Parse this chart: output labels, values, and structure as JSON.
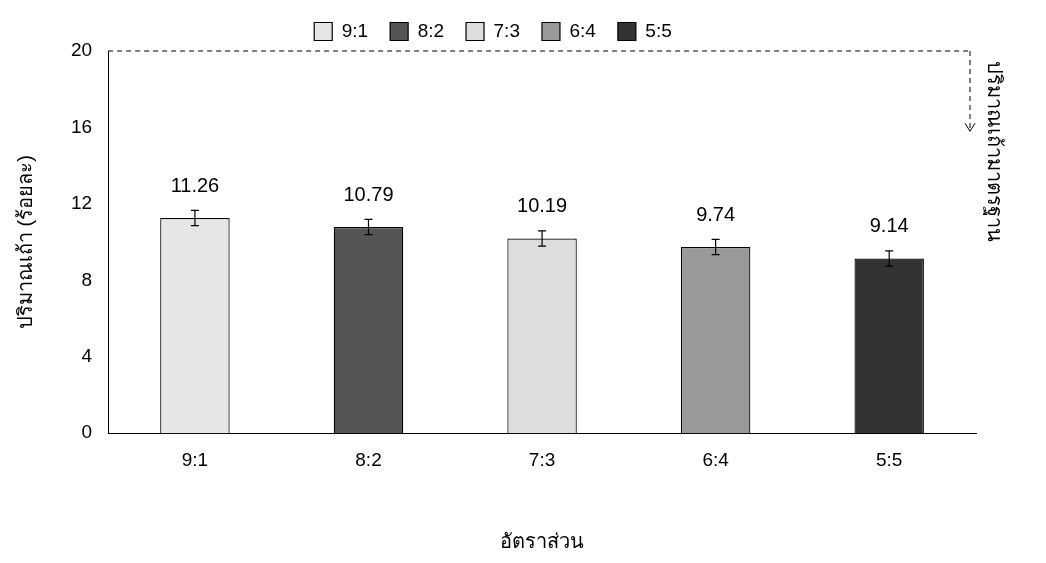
{
  "chart_data": {
    "type": "bar",
    "xlabel": "อัตราส่วน",
    "ylabel": "ปริมาณเถ้า (ร้อยละ)",
    "categories": [
      "9:1",
      "8:2",
      "7:3",
      "6:4",
      "5:5"
    ],
    "series": [
      {
        "name": "9:1",
        "color": "#e6e6e6",
        "values": [
          11.26,
          null,
          null,
          null,
          null
        ],
        "errors": [
          0.4,
          null,
          null,
          null,
          null
        ]
      },
      {
        "name": "8:2",
        "color": "#555555",
        "values": [
          null,
          10.79,
          null,
          null,
          null
        ],
        "errors": [
          null,
          0.4,
          null,
          null,
          null
        ]
      },
      {
        "name": "7:3",
        "color": "#dddddd",
        "values": [
          null,
          null,
          10.19,
          null,
          null
        ],
        "errors": [
          null,
          null,
          0.4,
          null,
          null
        ]
      },
      {
        "name": "6:4",
        "color": "#999999",
        "values": [
          null,
          null,
          null,
          9.74,
          null
        ],
        "errors": [
          null,
          null,
          null,
          0.4,
          null
        ]
      },
      {
        "name": "5:5",
        "color": "#333333",
        "values": [
          null,
          null,
          null,
          null,
          9.14
        ],
        "errors": [
          null,
          null,
          null,
          null,
          0.4
        ]
      }
    ],
    "ylim": [
      0,
      20
    ],
    "yticks": [
      0,
      4,
      8,
      12,
      16,
      20
    ],
    "grid": false,
    "legend": "top",
    "data_labels": true,
    "ref_lines": [
      {
        "axis": "y",
        "value": 20,
        "label": "ปริมาณเถ้ามาตรฐาน",
        "line_style": "dashed"
      }
    ]
  }
}
